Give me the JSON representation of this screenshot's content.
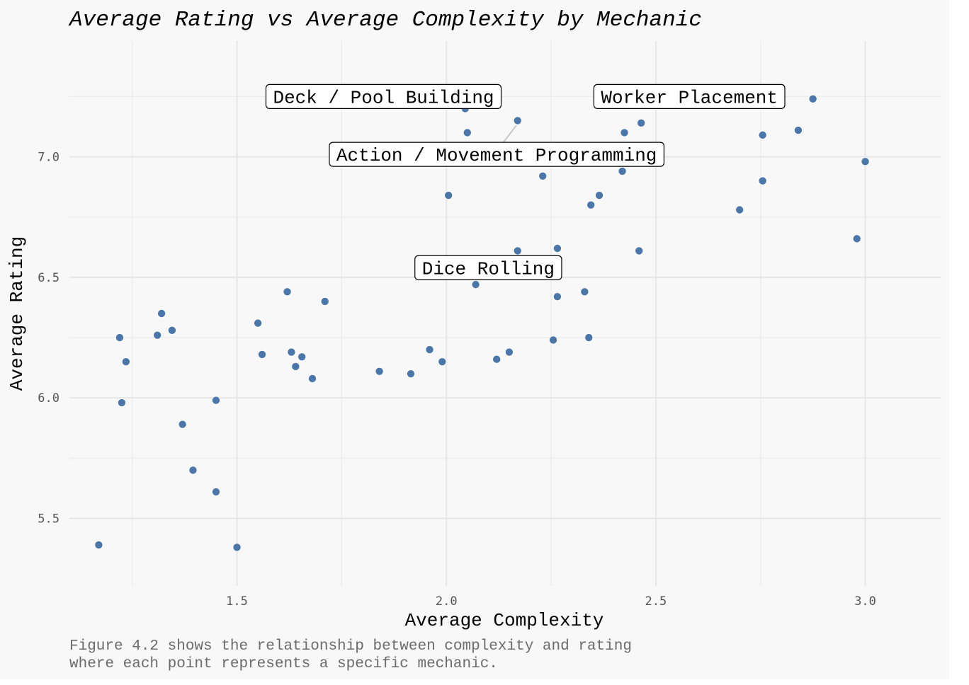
{
  "chart_data": {
    "type": "scatter",
    "title": "Average Rating vs Average Complexity by Mechanic",
    "xlabel": "Average Complexity",
    "ylabel": "Average Rating",
    "xlim": [
      1.1,
      3.18
    ],
    "ylim": [
      5.22,
      7.48
    ],
    "x_major_ticks": [
      1.5,
      2.0,
      2.5,
      3.0
    ],
    "x_minor_ticks": [
      1.25,
      1.75,
      2.25,
      2.75
    ],
    "y_major_ticks": [
      5.5,
      6.0,
      6.5,
      7.0
    ],
    "y_minor_ticks": [
      5.75,
      6.25,
      6.75,
      7.25
    ],
    "x_tick_labels": [
      "1.5",
      "2.0",
      "2.5",
      "3.0"
    ],
    "y_tick_labels": [
      "5.5",
      "6.0",
      "6.5",
      "7.0"
    ],
    "grid": true,
    "point_color": "#4a76aa",
    "caption_lines": [
      "Figure 4.2 shows the relationship between complexity and rating",
      "where each point represents a specific mechanic."
    ],
    "points": [
      {
        "x": 1.17,
        "y": 5.39
      },
      {
        "x": 1.22,
        "y": 6.25
      },
      {
        "x": 1.225,
        "y": 5.98
      },
      {
        "x": 1.235,
        "y": 6.15
      },
      {
        "x": 1.31,
        "y": 6.26
      },
      {
        "x": 1.32,
        "y": 6.35
      },
      {
        "x": 1.345,
        "y": 6.28
      },
      {
        "x": 1.37,
        "y": 5.89
      },
      {
        "x": 1.395,
        "y": 5.7
      },
      {
        "x": 1.45,
        "y": 5.99
      },
      {
        "x": 1.45,
        "y": 5.61
      },
      {
        "x": 1.5,
        "y": 5.38
      },
      {
        "x": 1.55,
        "y": 6.31
      },
      {
        "x": 1.56,
        "y": 6.18
      },
      {
        "x": 1.62,
        "y": 6.44
      },
      {
        "x": 1.63,
        "y": 6.19
      },
      {
        "x": 1.64,
        "y": 6.13
      },
      {
        "x": 1.655,
        "y": 6.17
      },
      {
        "x": 1.68,
        "y": 6.08
      },
      {
        "x": 1.71,
        "y": 6.4
      },
      {
        "x": 1.84,
        "y": 6.11
      },
      {
        "x": 1.915,
        "y": 6.1
      },
      {
        "x": 1.96,
        "y": 6.2
      },
      {
        "x": 1.99,
        "y": 6.15
      },
      {
        "x": 2.005,
        "y": 6.84
      },
      {
        "x": 2.045,
        "y": 7.2
      },
      {
        "x": 2.05,
        "y": 7.1
      },
      {
        "x": 2.07,
        "y": 6.47
      },
      {
        "x": 2.12,
        "y": 6.16
      },
      {
        "x": 2.15,
        "y": 6.19
      },
      {
        "x": 2.17,
        "y": 6.61
      },
      {
        "x": 2.17,
        "y": 7.15
      },
      {
        "x": 2.23,
        "y": 6.92
      },
      {
        "x": 2.255,
        "y": 6.24
      },
      {
        "x": 2.265,
        "y": 6.62
      },
      {
        "x": 2.265,
        "y": 6.42
      },
      {
        "x": 2.33,
        "y": 6.44
      },
      {
        "x": 2.34,
        "y": 6.25
      },
      {
        "x": 2.345,
        "y": 6.8
      },
      {
        "x": 2.365,
        "y": 6.84
      },
      {
        "x": 2.42,
        "y": 6.94
      },
      {
        "x": 2.425,
        "y": 7.1
      },
      {
        "x": 2.46,
        "y": 6.61
      },
      {
        "x": 2.465,
        "y": 7.14
      },
      {
        "x": 2.7,
        "y": 6.78
      },
      {
        "x": 2.755,
        "y": 6.9
      },
      {
        "x": 2.755,
        "y": 7.09
      },
      {
        "x": 2.84,
        "y": 7.11
      },
      {
        "x": 2.875,
        "y": 7.24
      },
      {
        "x": 2.98,
        "y": 6.66
      },
      {
        "x": 3.0,
        "y": 6.98
      }
    ],
    "annotations": [
      {
        "label": "Deck / Pool Building",
        "x": 1.85,
        "y": 7.25
      },
      {
        "label": "Worker Placement",
        "x": 2.58,
        "y": 7.25
      },
      {
        "label": "Action / Movement Programming",
        "x": 2.12,
        "y": 7.01,
        "point_x": 2.17,
        "point_y": 7.15
      },
      {
        "label": "Dice Rolling",
        "x": 2.1,
        "y": 6.54
      }
    ]
  }
}
